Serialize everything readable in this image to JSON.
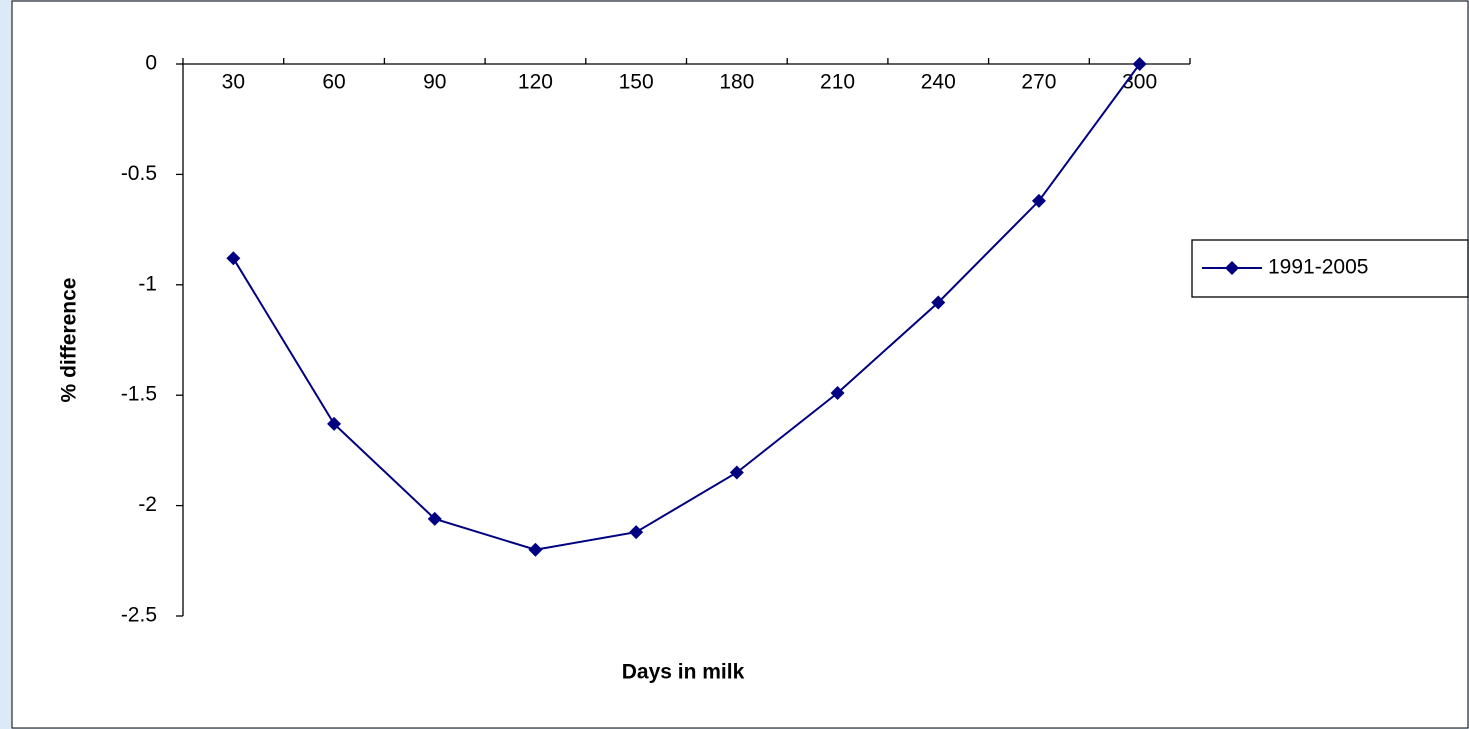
{
  "chart_data": {
    "type": "line",
    "x_label": "Days in milk",
    "y_label": "% difference",
    "categories": [
      "30",
      "60",
      "90",
      "120",
      "150",
      "180",
      "210",
      "240",
      "270",
      "300"
    ],
    "series": [
      {
        "name": "1991-2005",
        "color": "#000080",
        "values": [
          -0.88,
          -1.63,
          -2.06,
          -2.2,
          -2.12,
          -1.85,
          -1.49,
          -1.08,
          -0.62,
          0
        ]
      }
    ],
    "ylim": [
      -2.5,
      0
    ],
    "yticks": [
      0,
      -0.5,
      -1,
      -1.5,
      -2,
      -2.5
    ],
    "grid": false,
    "legend": "right"
  }
}
